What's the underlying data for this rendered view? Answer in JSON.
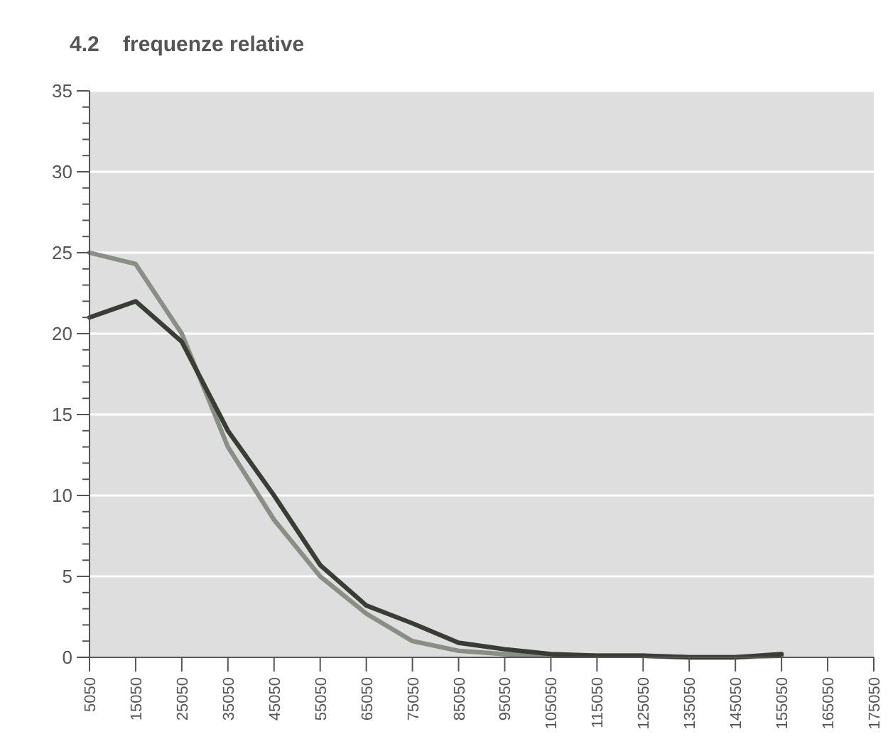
{
  "chart_data": {
    "type": "line",
    "title": "4.2    frequenze relative",
    "categories": [
      "5050",
      "15050",
      "25050",
      "35050",
      "45050",
      "55050",
      "65050",
      "75050",
      "85050",
      "95050",
      "105050",
      "115050",
      "125050",
      "135050",
      "145050",
      "155050",
      "165050",
      "175050"
    ],
    "series": [
      {
        "color": "#8a8f85",
        "values": [
          25,
          24.3,
          20,
          13,
          8.5,
          5,
          2.7,
          1,
          0.4,
          0.2,
          0.1,
          0.1,
          0.1,
          0,
          0,
          0.1,
          null,
          null
        ]
      },
      {
        "color": "#3a3d35",
        "values": [
          21,
          22,
          19.5,
          14,
          10,
          5.7,
          3.2,
          2.1,
          0.9,
          0.5,
          0.2,
          0.1,
          0.1,
          0,
          0,
          0.2,
          null,
          null
        ]
      }
    ],
    "ylim": [
      0,
      35
    ],
    "yticks": [
      0,
      {
        "value": 1,
        "label": null
      },
      {
        "value": 2,
        "label": null
      },
      {
        "value": 3,
        "label": null
      },
      {
        "value": 4,
        "label": null
      },
      5,
      {
        "value": 6,
        "label": null
      },
      {
        "value": 7,
        "label": null
      },
      {
        "value": 8,
        "label": null
      },
      {
        "value": 9,
        "label": null
      },
      10,
      {
        "value": 11,
        "label": null
      },
      {
        "value": 12,
        "label": null
      },
      {
        "value": 13,
        "label": null
      },
      {
        "value": 14,
        "label": null
      },
      15,
      {
        "value": 16,
        "label": null
      },
      {
        "value": 17,
        "label": null
      },
      {
        "value": 18,
        "label": null
      },
      {
        "value": 19,
        "label": null
      },
      20,
      {
        "value": 21,
        "label": null
      },
      {
        "value": 22,
        "label": null
      },
      {
        "value": 23,
        "label": null
      },
      {
        "value": 24,
        "label": null
      },
      25,
      {
        "value": 26,
        "label": null
      },
      {
        "value": 27,
        "label": null
      },
      {
        "value": 28,
        "label": null
      },
      {
        "value": 29,
        "label": null
      },
      30,
      {
        "value": 31,
        "label": null
      },
      {
        "value": 32,
        "label": null
      },
      {
        "value": 33,
        "label": null
      },
      {
        "value": 34,
        "label": null
      },
      35
    ],
    "grid": "y",
    "marker": "none",
    "line_style": "solid"
  }
}
